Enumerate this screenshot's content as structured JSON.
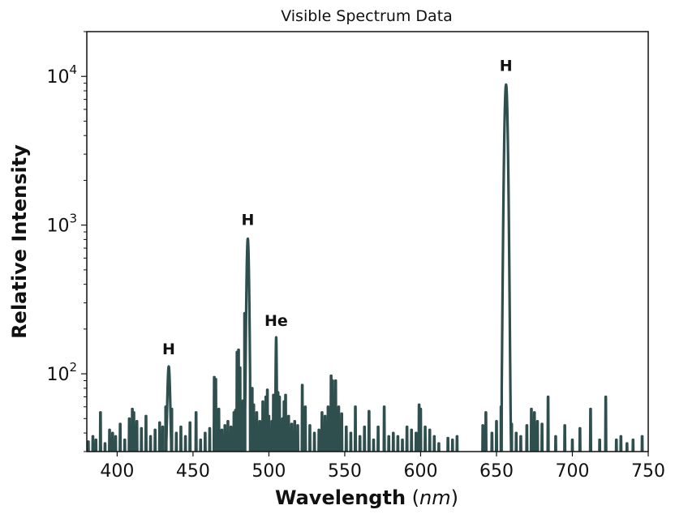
{
  "chart_data": {
    "type": "line",
    "title": "Visible Spectrum Data",
    "xlabel": "Wavelength",
    "xlabel_unit": "nm",
    "ylabel": "Relative Intensity",
    "xlim": [
      380,
      750
    ],
    "ylim": [
      30,
      20000
    ],
    "yscale": "log",
    "grid": false,
    "line_color": "#2f4f4f",
    "x_ticks": [
      400,
      450,
      500,
      550,
      600,
      650,
      700,
      750
    ],
    "y_ticks": [
      {
        "value": 100,
        "base": "10",
        "exp": "2"
      },
      {
        "value": 1000,
        "base": "10",
        "exp": "3"
      },
      {
        "value": 10000,
        "base": "10",
        "exp": "4"
      }
    ],
    "annotations": [
      {
        "text": "H",
        "x": 434.0,
        "y": 135
      },
      {
        "text": "H",
        "x": 486.1,
        "y": 1000
      },
      {
        "text": "He",
        "x": 504.8,
        "y": 210
      },
      {
        "text": "H",
        "x": 656.3,
        "y": 10900
      }
    ],
    "peaks": [
      {
        "x": 656.3,
        "y": 8800,
        "width": 0.9
      },
      {
        "x": 486.1,
        "y": 810,
        "width": 0.7
      },
      {
        "x": 434.0,
        "y": 112,
        "width": 0.8
      },
      {
        "x": 504.8,
        "y": 176,
        "width": 0.3
      }
    ],
    "spikes": [
      [
        381,
        35
      ],
      [
        384,
        38
      ],
      [
        386,
        36
      ],
      [
        389,
        55
      ],
      [
        392,
        34
      ],
      [
        395,
        42
      ],
      [
        397,
        40
      ],
      [
        399,
        38
      ],
      [
        402,
        46
      ],
      [
        405,
        36
      ],
      [
        408,
        50
      ],
      [
        410,
        58
      ],
      [
        411,
        55
      ],
      [
        413,
        48
      ],
      [
        416,
        43
      ],
      [
        419,
        52
      ],
      [
        422,
        38
      ],
      [
        425,
        42
      ],
      [
        428,
        47
      ],
      [
        430,
        44
      ],
      [
        432,
        60
      ],
      [
        436,
        58
      ],
      [
        439,
        40
      ],
      [
        442,
        44
      ],
      [
        445,
        38
      ],
      [
        448,
        47
      ],
      [
        452,
        55
      ],
      [
        455,
        36
      ],
      [
        458,
        40
      ],
      [
        461,
        43
      ],
      [
        464,
        95
      ],
      [
        465,
        92
      ],
      [
        467,
        58
      ],
      [
        469,
        42
      ],
      [
        471,
        45
      ],
      [
        473,
        48
      ],
      [
        475,
        44
      ],
      [
        477,
        55
      ],
      [
        478,
        57
      ],
      [
        479,
        140
      ],
      [
        480,
        145
      ],
      [
        481,
        110
      ],
      [
        483,
        66
      ],
      [
        484,
        255
      ],
      [
        488,
        66
      ],
      [
        489,
        80
      ],
      [
        490,
        62
      ],
      [
        492,
        55
      ],
      [
        494,
        48
      ],
      [
        496,
        65
      ],
      [
        498,
        70
      ],
      [
        499,
        78
      ],
      [
        500,
        52
      ],
      [
        502,
        48
      ],
      [
        503,
        72
      ],
      [
        506,
        75
      ],
      [
        507,
        70
      ],
      [
        509,
        50
      ],
      [
        510,
        65
      ],
      [
        511,
        72
      ],
      [
        513,
        52
      ],
      [
        515,
        46
      ],
      [
        517,
        48
      ],
      [
        519,
        45
      ],
      [
        522,
        84
      ],
      [
        524,
        60
      ],
      [
        527,
        45
      ],
      [
        530,
        40
      ],
      [
        533,
        42
      ],
      [
        535,
        55
      ],
      [
        537,
        52
      ],
      [
        539,
        60
      ],
      [
        541,
        97
      ],
      [
        542,
        90
      ],
      [
        544,
        90
      ],
      [
        546,
        60
      ],
      [
        548,
        54
      ],
      [
        551,
        44
      ],
      [
        554,
        40
      ],
      [
        557,
        60
      ],
      [
        560,
        38
      ],
      [
        563,
        44
      ],
      [
        566,
        56
      ],
      [
        569,
        36
      ],
      [
        572,
        44
      ],
      [
        576,
        60
      ],
      [
        579,
        38
      ],
      [
        582,
        40
      ],
      [
        585,
        38
      ],
      [
        588,
        36
      ],
      [
        591,
        44
      ],
      [
        594,
        42
      ],
      [
        597,
        40
      ],
      [
        599,
        62
      ],
      [
        600,
        58
      ],
      [
        603,
        44
      ],
      [
        606,
        42
      ],
      [
        609,
        38
      ],
      [
        612,
        34
      ],
      [
        618,
        37
      ],
      [
        621,
        36
      ],
      [
        624,
        38
      ],
      [
        641,
        45
      ],
      [
        643,
        55
      ],
      [
        647,
        40
      ],
      [
        650,
        48
      ],
      [
        653,
        60
      ],
      [
        660,
        46
      ],
      [
        663,
        40
      ],
      [
        666,
        38
      ],
      [
        670,
        45
      ],
      [
        673,
        58
      ],
      [
        675,
        55
      ],
      [
        677,
        48
      ],
      [
        680,
        46
      ],
      [
        684,
        70
      ],
      [
        689,
        38
      ],
      [
        695,
        45
      ],
      [
        700,
        36
      ],
      [
        705,
        43
      ],
      [
        712,
        58
      ],
      [
        718,
        36
      ],
      [
        722,
        70
      ],
      [
        729,
        36
      ],
      [
        732,
        38
      ],
      [
        736,
        34
      ],
      [
        740,
        36
      ],
      [
        746,
        38
      ]
    ]
  }
}
